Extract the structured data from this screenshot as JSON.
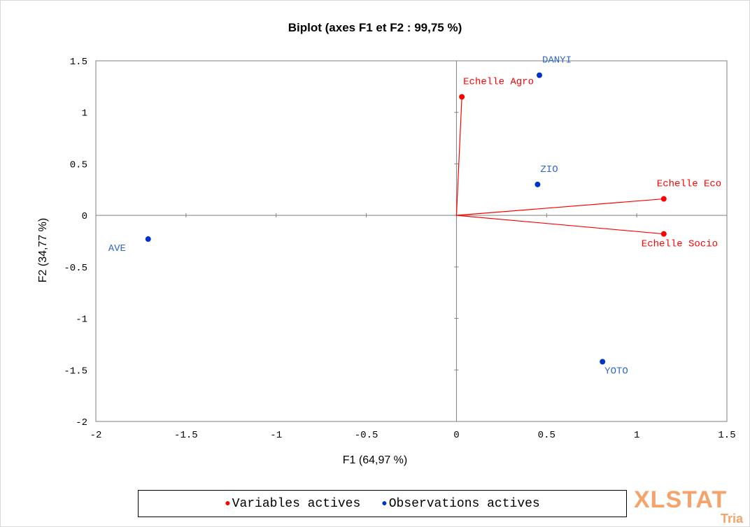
{
  "chart_data": {
    "type": "scatter",
    "title": "Biplot (axes F1 et F2 : 99,75 %)",
    "xlabel": "F1 (64,97 %)",
    "ylabel": "F2 (34,77 %)",
    "xlim": [
      -2,
      1.5
    ],
    "ylim": [
      -2,
      1.5
    ],
    "x_ticks": [
      "-2",
      "-1.5",
      "-1",
      "-0.5",
      "0",
      "0.5",
      "1",
      "1.5"
    ],
    "y_ticks": [
      "-2",
      "-1.5",
      "-1",
      "-0.5",
      "0",
      "0.5",
      "1",
      "1.5"
    ],
    "grid": false,
    "legend_position": "bottom",
    "series": [
      {
        "name": "Variables actives",
        "color": "#ff0000",
        "vectors_from_origin": true,
        "points": [
          {
            "label": "Echelle Agro",
            "x": 0.03,
            "y": 1.15
          },
          {
            "label": "Echelle Eco",
            "x": 1.15,
            "y": 0.16
          },
          {
            "label": "Echelle Socio",
            "x": 1.15,
            "y": -0.18
          }
        ]
      },
      {
        "name": "Observations actives",
        "color": "#0033cc",
        "vectors_from_origin": false,
        "points": [
          {
            "label": "DANYI",
            "x": 0.46,
            "y": 1.36
          },
          {
            "label": "ZIO",
            "x": 0.45,
            "y": 0.3
          },
          {
            "label": "AVE",
            "x": -1.71,
            "y": -0.23
          },
          {
            "label": "YOTO",
            "x": 0.81,
            "y": -1.42
          }
        ]
      }
    ]
  },
  "logo": {
    "main": "XLSTAT",
    "sub": "Tria"
  },
  "colors": {
    "label_red": "#ff0000",
    "label_blue": "#3366cc",
    "axis": "#808080"
  }
}
